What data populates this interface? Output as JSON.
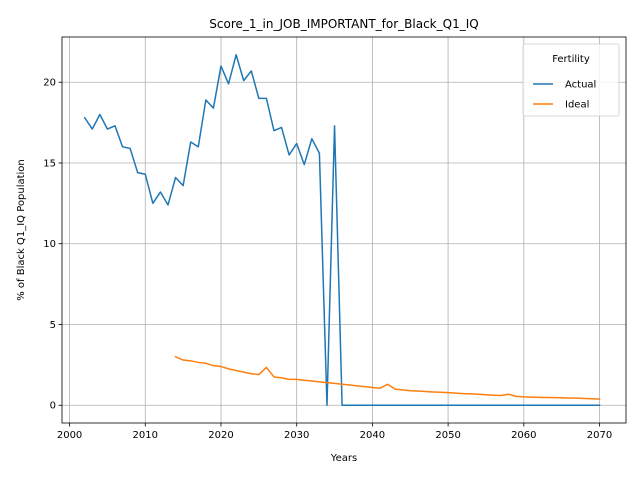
{
  "chart_data": {
    "type": "line",
    "title": "Score_1_in_JOB_IMPORTANT_for_Black_Q1_IQ",
    "xlabel": "Years",
    "ylabel": "% of Black Q1_IQ Population",
    "xlim": [
      1999,
      2073.5
    ],
    "ylim": [
      -1.1,
      22.8
    ],
    "xticks": [
      2000,
      2010,
      2020,
      2030,
      2040,
      2050,
      2060,
      2070
    ],
    "yticks": [
      0,
      5,
      10,
      15,
      20
    ],
    "grid": true,
    "legend": {
      "title": "Fertility",
      "placement": "top-right"
    },
    "series": [
      {
        "name": "Actual",
        "color": "#1f77b4",
        "x": [
          2002,
          2003,
          2004,
          2005,
          2006,
          2007,
          2008,
          2009,
          2010,
          2011,
          2012,
          2013,
          2014,
          2015,
          2016,
          2017,
          2018,
          2019,
          2020,
          2021,
          2022,
          2023,
          2024,
          2025,
          2026,
          2027,
          2028,
          2029,
          2030,
          2031,
          2032,
          2033,
          2034,
          2035,
          2036,
          2037,
          2038,
          2039,
          2040,
          2041,
          2042,
          2043,
          2044,
          2045,
          2046,
          2047,
          2048,
          2049,
          2050,
          2051,
          2052,
          2053,
          2054,
          2055,
          2056,
          2057,
          2058,
          2059,
          2060,
          2061,
          2062,
          2063,
          2064,
          2065,
          2066,
          2067,
          2068,
          2069,
          2070
        ],
        "y": [
          17.8,
          17.1,
          18.0,
          17.1,
          17.3,
          16.0,
          15.9,
          14.4,
          14.3,
          12.5,
          13.2,
          12.4,
          14.1,
          13.6,
          16.3,
          16.0,
          18.9,
          18.4,
          21.0,
          19.9,
          21.7,
          20.1,
          20.7,
          19.0,
          19.0,
          17.0,
          17.2,
          15.5,
          16.2,
          14.9,
          16.5,
          15.6,
          0.0,
          17.3,
          0.0,
          0.0,
          0.0,
          0.0,
          0.0,
          0.0,
          0.0,
          0.0,
          0.0,
          0.0,
          0.0,
          0.0,
          0.0,
          0.0,
          0.0,
          0.0,
          0.0,
          0.0,
          0.0,
          0.0,
          0.0,
          0.0,
          0.0,
          0.0,
          0.0,
          0.0,
          0.0,
          0.0,
          0.0,
          0.0,
          0.0,
          0.0,
          0.0,
          0.0,
          0.0
        ]
      },
      {
        "name": "Ideal",
        "color": "#ff7f0e",
        "x": [
          2014,
          2015,
          2016,
          2017,
          2018,
          2019,
          2020,
          2021,
          2022,
          2023,
          2024,
          2025,
          2026,
          2027,
          2028,
          2029,
          2030,
          2031,
          2032,
          2033,
          2034,
          2035,
          2036,
          2037,
          2038,
          2039,
          2040,
          2041,
          2042,
          2043,
          2044,
          2045,
          2046,
          2047,
          2048,
          2049,
          2050,
          2051,
          2052,
          2053,
          2054,
          2055,
          2056,
          2057,
          2058,
          2059,
          2060,
          2061,
          2062,
          2063,
          2064,
          2065,
          2066,
          2067,
          2068,
          2069,
          2070
        ],
        "y": [
          3.0,
          2.8,
          2.75,
          2.65,
          2.6,
          2.45,
          2.4,
          2.25,
          2.15,
          2.05,
          1.95,
          1.9,
          2.35,
          1.75,
          1.7,
          1.6,
          1.6,
          1.55,
          1.5,
          1.45,
          1.4,
          1.35,
          1.3,
          1.25,
          1.2,
          1.15,
          1.1,
          1.05,
          1.3,
          1.0,
          0.95,
          0.9,
          0.88,
          0.85,
          0.82,
          0.8,
          0.78,
          0.75,
          0.72,
          0.7,
          0.68,
          0.65,
          0.62,
          0.6,
          0.68,
          0.55,
          0.52,
          0.5,
          0.49,
          0.48,
          0.47,
          0.46,
          0.45,
          0.44,
          0.42,
          0.4,
          0.38
        ]
      }
    ]
  }
}
